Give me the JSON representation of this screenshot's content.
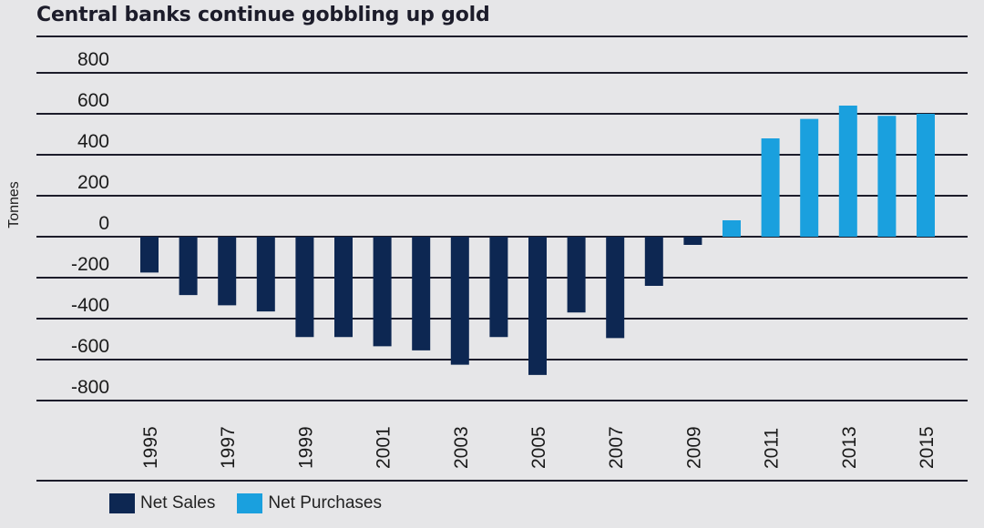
{
  "title": "Central banks continue gobbling up gold",
  "chart_data": {
    "type": "bar",
    "title": "Central banks continue gobbling up gold",
    "ylabel": "Tonnes",
    "xlabel": "",
    "ylim": [
      -800,
      800
    ],
    "yticks": [
      800,
      600,
      400,
      200,
      0,
      -200,
      -400,
      -600,
      -800
    ],
    "x_tick_labels": [
      "1995",
      "1997",
      "1999",
      "2001",
      "2003",
      "2005",
      "2007",
      "2009",
      "2011",
      "2013",
      "2015"
    ],
    "categories": [
      "1995",
      "1996",
      "1997",
      "1998",
      "1999",
      "2000",
      "2001",
      "2002",
      "2003",
      "2004",
      "2005",
      "2006",
      "2007",
      "2008",
      "2009",
      "2010",
      "2011",
      "2012",
      "2013",
      "2014",
      "2015"
    ],
    "series": [
      {
        "name": "Net Sales",
        "color": "#0d2752",
        "values": [
          -175,
          -285,
          -335,
          -365,
          -490,
          -490,
          -535,
          -555,
          -625,
          -490,
          -675,
          -370,
          -495,
          -240,
          -40,
          null,
          null,
          null,
          null,
          null,
          null
        ]
      },
      {
        "name": "Net Purchases",
        "color": "#1aa0de",
        "values": [
          null,
          null,
          null,
          null,
          null,
          null,
          null,
          null,
          null,
          null,
          null,
          null,
          null,
          null,
          null,
          80,
          480,
          575,
          640,
          590,
          600
        ]
      }
    ],
    "grid": true,
    "legend": "bottom-left"
  }
}
